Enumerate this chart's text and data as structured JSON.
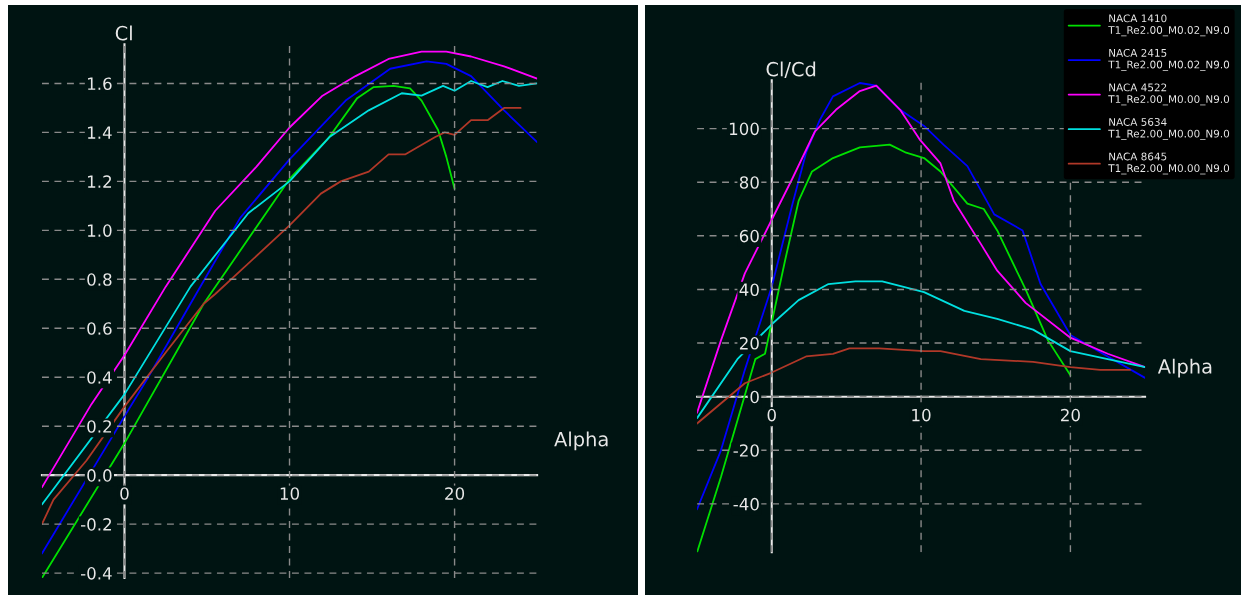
{
  "chart_data": [
    {
      "type": "line",
      "xlabel": "Alpha",
      "ylabel": "Cl",
      "xlim": [
        -5,
        25
      ],
      "ylim": [
        -0.42,
        1.76
      ],
      "xticks": [
        0,
        10,
        20
      ],
      "yticks": [
        -0.4,
        -0.2,
        {
          "value": 0,
          "label": "0.0"
        },
        0.2,
        0.4,
        0.6,
        0.8,
        {
          "value": 1,
          "label": "1.0"
        },
        1.2,
        1.4,
        1.6
      ],
      "grid": true,
      "legend": false,
      "series": [
        {
          "color": "#00e000",
          "x": [
            -5,
            0,
            4.8,
            10,
            12.4,
            14.1,
            15.1,
            16.3,
            17.3,
            18,
            19,
            19.5,
            20
          ],
          "values": [
            -0.42,
            0.13,
            0.7,
            1.21,
            1.38,
            1.54,
            1.585,
            1.59,
            1.58,
            1.53,
            1.41,
            1.3,
            1.17
          ]
        },
        {
          "color": "#0000ff",
          "x": [
            -5,
            0,
            1.35,
            4,
            7,
            10,
            13.4,
            16.1,
            18.3,
            19.5,
            21,
            23,
            25
          ],
          "values": [
            -0.32,
            0.24,
            0.39,
            0.7,
            1.05,
            1.29,
            1.53,
            1.66,
            1.69,
            1.68,
            1.63,
            1.49,
            1.36
          ]
        },
        {
          "color": "#ff00ff",
          "x": [
            -5,
            -2,
            0,
            2.5,
            5.5,
            8,
            10,
            12,
            14,
            16,
            18,
            19.5,
            21,
            23,
            25
          ],
          "values": [
            -0.05,
            0.29,
            0.49,
            0.77,
            1.08,
            1.26,
            1.42,
            1.55,
            1.63,
            1.7,
            1.73,
            1.73,
            1.71,
            1.67,
            1.62
          ]
        },
        {
          "color": "#00e0e0",
          "x": [
            -5,
            0,
            4,
            7.5,
            10,
            12.4,
            14.8,
            16.8,
            18,
            19.3,
            20,
            21,
            22,
            22.9,
            23.9,
            25
          ],
          "values": [
            -0.12,
            0.33,
            0.77,
            1.07,
            1.2,
            1.38,
            1.49,
            1.56,
            1.55,
            1.59,
            1.57,
            1.61,
            1.585,
            1.61,
            1.59,
            1.6
          ]
        },
        {
          "color": "#b03828",
          "x": [
            -5,
            -4.3,
            -2.3,
            0,
            2.6,
            4.8,
            5.5,
            10,
            11.9,
            13.1,
            14.8,
            16,
            17,
            18.8,
            19.4,
            20,
            21,
            22,
            23,
            24
          ],
          "values": [
            -0.2,
            -0.1,
            0.06,
            0.28,
            0.51,
            0.7,
            0.74,
            1.02,
            1.15,
            1.2,
            1.24,
            1.31,
            1.31,
            1.38,
            1.4,
            1.39,
            1.45,
            1.45,
            1.5,
            1.5
          ]
        }
      ]
    },
    {
      "type": "line",
      "xlabel": "Alpha",
      "ylabel": "Cl/Cd",
      "xlim": [
        -5,
        25
      ],
      "ylim": [
        -58,
        118
      ],
      "xticks": [
        0,
        10,
        20
      ],
      "yticks": [
        -40,
        -20,
        0,
        20,
        40,
        60,
        80,
        100
      ],
      "grid": true,
      "legend": "top right",
      "series": [
        {
          "name": "NACA 1410\nT1_Re2.00_M0.02_N9.0",
          "color": "#00e000",
          "x": [
            -5,
            -3.4,
            -1.1,
            -0.45,
            0.9,
            1.8,
            2.7,
            4.1,
            5.9,
            7.9,
            9,
            10.2,
            11.3,
            13.1,
            14.2,
            15.1,
            17,
            18.5,
            20
          ],
          "values": [
            -58,
            -30,
            14,
            16,
            51,
            73,
            84,
            89,
            93,
            94,
            91,
            89,
            84,
            72,
            70,
            62,
            40,
            21,
            8
          ]
        },
        {
          "name": "NACA 2415\nT1_Re2.00_M0.02_N9.0",
          "color": "#0000ff",
          "x": [
            -5,
            -3.4,
            -1.8,
            0,
            1.35,
            2.3,
            3.2,
            4.1,
            5.9,
            7,
            8.6,
            10.2,
            11.5,
            13.1,
            14.9,
            16.8,
            18,
            20,
            22.5,
            25
          ],
          "values": [
            -42,
            -20,
            10,
            41,
            71,
            91,
            103,
            112,
            117,
            116,
            107,
            101,
            94,
            86,
            68,
            62,
            42,
            23,
            15,
            7
          ]
        },
        {
          "name": "NACA 4522\nT1_Re2.00_M0.00_N9.0",
          "color": "#ff00ff",
          "x": [
            -5,
            -3.4,
            -1.8,
            0,
            1.35,
            2.9,
            4.3,
            5.9,
            7,
            8.6,
            9.9,
            11.3,
            12.2,
            14,
            15.1,
            17,
            20,
            22.5,
            25
          ],
          "values": [
            -6,
            21,
            46,
            66,
            81,
            99,
            107,
            114,
            116,
            107,
            96,
            87,
            73,
            57,
            47,
            35,
            22,
            16,
            11
          ]
        },
        {
          "name": "NACA 5634\nT1_Re2.00_M0.00_N9.0",
          "color": "#00e0e0",
          "x": [
            -5,
            -2.3,
            0,
            1.8,
            3.8,
            5.6,
            7.4,
            10.2,
            12.9,
            15.1,
            17.5,
            20,
            25
          ],
          "values": [
            -8,
            14,
            27,
            36,
            42,
            43,
            43,
            39,
            32,
            29,
            25,
            17,
            11
          ]
        },
        {
          "name": "NACA 8645\nT1_Re2.00_M0.00_N9.0",
          "color": "#b03828",
          "x": [
            -5,
            -1.8,
            0,
            2.3,
            4.1,
            5.2,
            7.2,
            10.2,
            11.3,
            14,
            17.5,
            20,
            22,
            24
          ],
          "values": [
            -10,
            5,
            9,
            15,
            16,
            18,
            18,
            17,
            17,
            14,
            13,
            11,
            10,
            10
          ]
        }
      ]
    }
  ]
}
